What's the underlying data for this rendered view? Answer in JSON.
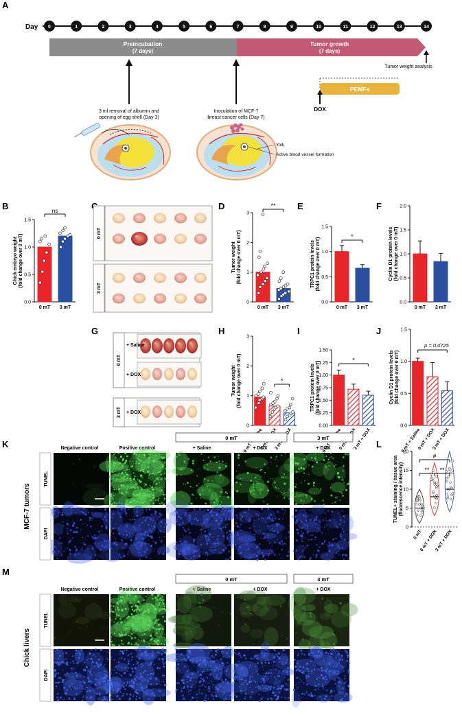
{
  "panel_letters": {
    "A": "A",
    "B": "B",
    "C": "C",
    "D": "D",
    "E": "E",
    "F": "F",
    "G": "G",
    "H": "H",
    "I": "I",
    "J": "J",
    "K": "K",
    "L": "L",
    "M": "M"
  },
  "timeline": {
    "day_label": "Day",
    "days": [
      "0",
      "1",
      "2",
      "3",
      "4",
      "5",
      "6",
      "7",
      "8",
      "9",
      "10",
      "11",
      "12",
      "13",
      "14"
    ],
    "preincubation_title": "Preincubation",
    "preincubation_sub": "(7 days)",
    "growth_title": "Tumor growth",
    "growth_sub": "(7 days)",
    "tumor_weight_analysis": "Tumor weight analysis",
    "pemfs": "PEMFs",
    "dox": "DOX",
    "step1_line1": "3 ml removal of albumin and",
    "step1_line2": "opening of egg shell (Day 3)",
    "step2_line1": "Inoculation of MCF-7",
    "step2_line2": "breast cancer cells (Day 7)",
    "yolk": "Yolk",
    "vessel": "Active blood vessel formation",
    "colors": {
      "grey": "#8c8c8c",
      "pink": "#c25a75",
      "gold": "#e8b53a",
      "yolk": "#f4e23a",
      "egg_outline": "#e8a879",
      "fluid": "#bcdff0"
    }
  },
  "labels": {
    "zero_mT": "0 mT",
    "three_mT": "3 mT",
    "saline_group": "+ Saline",
    "dox_group": "+ DOX",
    "ns": "ns",
    "sig1": "*",
    "sig2": "**",
    "sig_hash": "#",
    "p_value": "p = 0.0725",
    "tick_0_0": "0.0",
    "tick_0_5": "0.5",
    "tick_1_0": "1.0",
    "tick_1_5": "1.5",
    "tick_2_0": "2.0",
    "tick_0_00": "0.00",
    "tick_0_25": "0.25",
    "tick_0_50": "0.50",
    "tick_0_75": "0.75",
    "tick_1_00": "1.00",
    "tick_1_25": "1.25",
    "tick_1_50": "1.50",
    "tick_0": "0",
    "tick_1": "1",
    "tick_2": "2",
    "tick_3": "3",
    "tick_5": "5",
    "tick_10": "10",
    "tick_15": "15",
    "tick_20": "20",
    "xcat_0mT_saline": "0 mT + Saline",
    "xcat_0mT_dox": "0 mT + DOX",
    "xcat_3mT_dox": "3 mT + DOX",
    "xcat_0mT": "0 mT",
    "y_B_1": "Chick embryo weight",
    "y_fold": "(fold change over 0 mT)",
    "y_tumor": "Tumor weight",
    "y_trpc1": "TRPC1 protein levels",
    "y_cyclin": "Cyclin D1 protein levels",
    "y_tunel_1": "TUNEL+ staining / tissue area",
    "y_tunel_2": "(fluorescence intensity)",
    "neg_ctrl": "Negative control",
    "pos_ctrl": "Positive control",
    "tunel": "TUNEL",
    "dapi": "DAPI",
    "mcf7_tumors": "MCF-7 tumors",
    "chick_livers": "Chick livers"
  },
  "chart_data": [
    {
      "panel": "B",
      "type": "bar",
      "categories": [
        "0 mT",
        "3 mT"
      ],
      "values": [
        1.0,
        1.2
      ],
      "ylim": [
        0,
        1.5
      ],
      "colors": [
        "#e8262a",
        "#2b4fa1"
      ],
      "points": [
        [
          0.35,
          0.55,
          0.75,
          0.9,
          1.05,
          1.1,
          1.15,
          1.2
        ],
        [
          1.0,
          1.1,
          1.15,
          1.2,
          1.22,
          1.25,
          1.3,
          1.35
        ]
      ]
    },
    {
      "panel": "D",
      "type": "bar",
      "categories": [
        "0 mT",
        "3 mT"
      ],
      "values": [
        1.0,
        0.45
      ],
      "ylim": [
        0,
        3
      ],
      "colors": [
        "#e8262a",
        "#2b4fa1"
      ],
      "points": [
        [
          0.3,
          0.5,
          0.6,
          0.7,
          0.8,
          0.9,
          1.0,
          1.1,
          1.2,
          1.3,
          1.5,
          1.7,
          2.95
        ],
        [
          0.1,
          0.2,
          0.25,
          0.3,
          0.35,
          0.4,
          0.45,
          0.5,
          0.55,
          0.6,
          0.7,
          0.8,
          1.0
        ]
      ]
    },
    {
      "panel": "E",
      "type": "bar",
      "categories": [
        "0 mT",
        "3 mT"
      ],
      "values": [
        1.0,
        0.67
      ],
      "errors": [
        0.12,
        0.07
      ],
      "ylim": [
        0,
        1.5
      ],
      "colors": [
        "#e8262a",
        "#2b4fa1"
      ]
    },
    {
      "panel": "F",
      "type": "bar",
      "categories": [
        "0 mT",
        "3 mT"
      ],
      "values": [
        1.0,
        0.84
      ],
      "errors": [
        0.27,
        0.17
      ],
      "ylim": [
        0,
        2.0
      ],
      "colors": [
        "#e8262a",
        "#2b4fa1"
      ]
    },
    {
      "panel": "H",
      "type": "bar",
      "categories": [
        "0 mT + Saline",
        "0 mT + DOX",
        "3 mT + DOX"
      ],
      "values": [
        0.95,
        0.65,
        0.42
      ],
      "ylim": [
        0,
        3
      ],
      "colors": [
        "#e8262a",
        "#e8262a",
        "#2b4fa1"
      ],
      "points": [
        [
          0.6,
          0.75,
          0.85,
          0.9,
          0.95,
          1.0,
          1.05,
          1.15,
          1.25,
          1.4
        ],
        [
          0.3,
          0.45,
          0.55,
          0.6,
          0.65,
          0.7,
          0.75,
          0.8,
          0.9,
          1.0,
          1.1
        ],
        [
          0.2,
          0.3,
          0.35,
          0.4,
          0.45,
          0.5,
          0.55,
          0.6,
          0.7,
          0.9
        ]
      ]
    },
    {
      "panel": "I",
      "type": "bar",
      "categories": [
        "0 mT + Saline",
        "0 mT + DOX",
        "3 mT + DOX"
      ],
      "values": [
        1.0,
        0.72,
        0.6
      ],
      "errors": [
        0.1,
        0.1,
        0.08
      ],
      "ylim": [
        0,
        1.5
      ],
      "colors": [
        "#e8262a",
        "#e8262a",
        "#2b4fa1"
      ]
    },
    {
      "panel": "J",
      "type": "bar",
      "categories": [
        "0 mT + Saline",
        "0 mT + DOX",
        "3 mT + DOX"
      ],
      "values": [
        1.0,
        0.76,
        0.54
      ],
      "errors": [
        0.05,
        0.22,
        0.14
      ],
      "ylim": [
        0,
        1.5
      ],
      "colors": [
        "#e8262a",
        "#e8262a",
        "#2b4fa1"
      ]
    },
    {
      "panel": "L",
      "type": "violin",
      "categories": [
        "0 mT",
        "0 mT + DOX",
        "3 mT + DOX"
      ],
      "medians": [
        5,
        8,
        10
      ],
      "ranges": [
        [
          1,
          10
        ],
        [
          3,
          17
        ],
        [
          4,
          20
        ]
      ],
      "ylim": [
        0,
        20
      ],
      "colors": [
        "#444444",
        "#d43a3a",
        "#3b5bb5"
      ]
    }
  ]
}
